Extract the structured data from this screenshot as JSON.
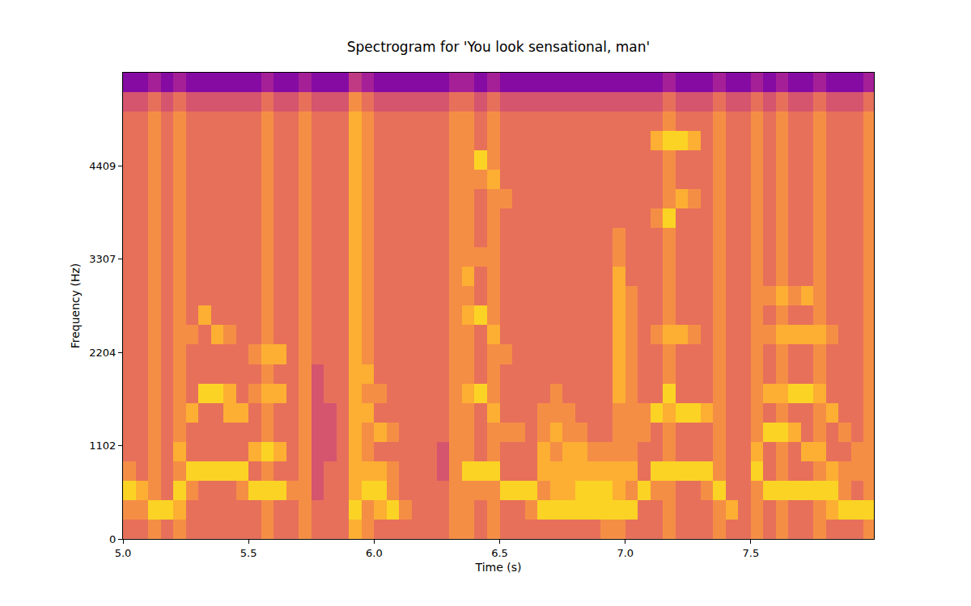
{
  "chart_data": {
    "type": "heatmap",
    "title": "Spectrogram for 'You look sensational, man'",
    "x_label": "Time (s)",
    "y_label": "Frequency (Hz)",
    "color": "plasma",
    "grid": false,
    "xlim": [
      5.0,
      7.99
    ],
    "ylim": [
      0,
      5512
    ],
    "xticks": [
      {
        "value": 5.0,
        "label": "5.0"
      },
      {
        "value": 5.5,
        "label": "5.5"
      },
      {
        "value": 6.0,
        "label": "6.0"
      },
      {
        "value": 6.5,
        "label": "6.5"
      },
      {
        "value": 7.0,
        "label": "7.0"
      },
      {
        "value": 7.5,
        "label": "7.5"
      }
    ],
    "yticks": [
      0,
      1102,
      2204,
      3307,
      4409
    ],
    "color_range": [
      -1,
      10
    ],
    "x": [
      5.025,
      5.075,
      5.125,
      5.175,
      5.225,
      5.275,
      5.325,
      5.375,
      5.425,
      5.475,
      5.525,
      5.575,
      5.625,
      5.675,
      5.725,
      5.775,
      5.825,
      5.875,
      5.925,
      5.975,
      6.025,
      6.075,
      6.125,
      6.175,
      6.225,
      6.275,
      6.325,
      6.375,
      6.425,
      6.475,
      6.525,
      6.575,
      6.625,
      6.675,
      6.725,
      6.775,
      6.825,
      6.875,
      6.925,
      6.975,
      7.025,
      7.075,
      7.125,
      7.175,
      7.225,
      7.275,
      7.325,
      7.375,
      7.425,
      7.475,
      7.525,
      7.575,
      7.625,
      7.675,
      7.725,
      7.775,
      7.825,
      7.875,
      7.925,
      7.975
    ],
    "y": [
      115,
      345,
      574,
      804,
      1034,
      1263,
      1493,
      1723,
      1952,
      2182,
      2412,
      2641,
      2871,
      3101,
      3330,
      3560,
      3790,
      4020,
      4249,
      4479,
      4709,
      4938,
      5168,
      5398
    ],
    "cells": [
      [
        6,
        7,
        9,
        7,
        6,
        6,
        6,
        6,
        6,
        6,
        6,
        6,
        6,
        6,
        6,
        6,
        6,
        6,
        6,
        6,
        6,
        6,
        5,
        2
      ],
      [
        6,
        7,
        8,
        6,
        6,
        6,
        6,
        6,
        6,
        6,
        6,
        6,
        6,
        6,
        6,
        6,
        6,
        6,
        6,
        6,
        6,
        6,
        5,
        2
      ],
      [
        7,
        9,
        7,
        7,
        7,
        7,
        7,
        7,
        7,
        7,
        7,
        7,
        7,
        7,
        7,
        7,
        7,
        7,
        7,
        7,
        7,
        7,
        6,
        3
      ],
      [
        6,
        9,
        6,
        6,
        6,
        6,
        6,
        6,
        6,
        6,
        6,
        6,
        6,
        6,
        6,
        6,
        6,
        6,
        6,
        6,
        6,
        6,
        5,
        2
      ],
      [
        7,
        8,
        9,
        7,
        8,
        7,
        7,
        7,
        7,
        7,
        7,
        7,
        7,
        7,
        7,
        7,
        7,
        7,
        7,
        7,
        7,
        7,
        6,
        3
      ],
      [
        6,
        6,
        7,
        9,
        6,
        6,
        8,
        6,
        6,
        6,
        7,
        6,
        6,
        6,
        6,
        6,
        6,
        6,
        6,
        6,
        6,
        6,
        5,
        2
      ],
      [
        6,
        6,
        6,
        9,
        6,
        6,
        6,
        9,
        6,
        6,
        6,
        8,
        6,
        6,
        6,
        6,
        6,
        6,
        6,
        6,
        6,
        6,
        5,
        2
      ],
      [
        6,
        6,
        6,
        9,
        6,
        6,
        6,
        9,
        6,
        6,
        8,
        6,
        6,
        6,
        6,
        6,
        6,
        6,
        6,
        6,
        6,
        6,
        5,
        2
      ],
      [
        6,
        6,
        6,
        9,
        6,
        6,
        8,
        8,
        6,
        6,
        7,
        6,
        6,
        6,
        6,
        6,
        6,
        6,
        6,
        6,
        6,
        6,
        5,
        2
      ],
      [
        6,
        6,
        7,
        9,
        6,
        6,
        8,
        6,
        6,
        6,
        6,
        6,
        6,
        6,
        6,
        6,
        6,
        6,
        6,
        6,
        6,
        6,
        5,
        2
      ],
      [
        6,
        6,
        9,
        6,
        8,
        6,
        6,
        7,
        6,
        7,
        6,
        6,
        6,
        6,
        6,
        6,
        6,
        6,
        6,
        6,
        6,
        6,
        5,
        2
      ],
      [
        7,
        7,
        9,
        7,
        9,
        7,
        7,
        8,
        7,
        8,
        7,
        7,
        7,
        7,
        7,
        7,
        7,
        7,
        7,
        7,
        7,
        7,
        6,
        3
      ],
      [
        6,
        6,
        9,
        6,
        8,
        6,
        6,
        8,
        6,
        8,
        6,
        6,
        6,
        6,
        6,
        6,
        6,
        6,
        6,
        6,
        6,
        6,
        5,
        2
      ],
      [
        6,
        6,
        7,
        6,
        6,
        6,
        6,
        6,
        6,
        6,
        6,
        6,
        6,
        6,
        6,
        6,
        6,
        6,
        6,
        6,
        6,
        6,
        5,
        2
      ],
      [
        7,
        7,
        7,
        7,
        7,
        7,
        7,
        7,
        7,
        7,
        7,
        7,
        7,
        7,
        7,
        7,
        7,
        7,
        7,
        7,
        7,
        7,
        6,
        3
      ],
      [
        6,
        6,
        5,
        5,
        5,
        5,
        5,
        5,
        5,
        6,
        6,
        6,
        6,
        6,
        6,
        6,
        6,
        6,
        6,
        6,
        6,
        6,
        5,
        2
      ],
      [
        6,
        6,
        6,
        6,
        5,
        5,
        5,
        6,
        6,
        6,
        6,
        6,
        6,
        6,
        6,
        6,
        6,
        6,
        6,
        6,
        6,
        6,
        5,
        2
      ],
      [
        6,
        6,
        6,
        6,
        6,
        6,
        6,
        6,
        6,
        6,
        6,
        6,
        6,
        6,
        6,
        6,
        6,
        6,
        6,
        6,
        6,
        6,
        5,
        2
      ],
      [
        8,
        9,
        8,
        8,
        8,
        8,
        8,
        8,
        8,
        8,
        8,
        8,
        8,
        8,
        8,
        8,
        8,
        8,
        8,
        8,
        8,
        8,
        7,
        4
      ],
      [
        7,
        7,
        9,
        8,
        7,
        7,
        8,
        7,
        8,
        7,
        7,
        7,
        7,
        7,
        7,
        7,
        7,
        7,
        7,
        7,
        7,
        7,
        6,
        3
      ],
      [
        6,
        8,
        9,
        8,
        6,
        8,
        6,
        7,
        6,
        6,
        6,
        6,
        6,
        6,
        6,
        6,
        6,
        6,
        6,
        6,
        6,
        6,
        5,
        2
      ],
      [
        6,
        9,
        7,
        7,
        6,
        7,
        6,
        6,
        6,
        6,
        6,
        6,
        6,
        6,
        6,
        6,
        6,
        6,
        6,
        6,
        6,
        6,
        5,
        2
      ],
      [
        6,
        7,
        6,
        6,
        6,
        6,
        6,
        6,
        6,
        6,
        6,
        6,
        6,
        6,
        6,
        6,
        6,
        6,
        6,
        6,
        6,
        6,
        5,
        2
      ],
      [
        6,
        6,
        6,
        6,
        6,
        6,
        6,
        6,
        6,
        6,
        6,
        6,
        6,
        6,
        6,
        6,
        6,
        6,
        6,
        6,
        6,
        6,
        5,
        2
      ],
      [
        6,
        6,
        6,
        6,
        6,
        6,
        6,
        6,
        6,
        6,
        6,
        6,
        6,
        6,
        6,
        6,
        6,
        6,
        6,
        6,
        6,
        6,
        5,
        2
      ],
      [
        6,
        6,
        6,
        5,
        5,
        6,
        6,
        6,
        6,
        6,
        6,
        6,
        6,
        6,
        6,
        6,
        6,
        6,
        6,
        6,
        6,
        6,
        5,
        2
      ],
      [
        7,
        7,
        7,
        7,
        7,
        7,
        7,
        7,
        7,
        7,
        7,
        7,
        7,
        7,
        7,
        7,
        7,
        7,
        7,
        7,
        7,
        7,
        6,
        3
      ],
      [
        7,
        7,
        7,
        9,
        7,
        7,
        7,
        8,
        7,
        7,
        7,
        8,
        7,
        8,
        7,
        7,
        7,
        7,
        7,
        7,
        7,
        7,
        6,
        3
      ],
      [
        6,
        6,
        7,
        9,
        6,
        6,
        6,
        9,
        6,
        6,
        6,
        9,
        6,
        6,
        7,
        6,
        6,
        6,
        7,
        9,
        6,
        6,
        5,
        2
      ],
      [
        7,
        7,
        7,
        9,
        7,
        7,
        8,
        7,
        7,
        7,
        8,
        7,
        7,
        7,
        7,
        7,
        7,
        7,
        8,
        7,
        7,
        7,
        6,
        3
      ],
      [
        6,
        6,
        9,
        6,
        6,
        7,
        6,
        6,
        6,
        7,
        6,
        6,
        6,
        6,
        6,
        6,
        6,
        7,
        6,
        6,
        6,
        6,
        5,
        2
      ],
      [
        6,
        6,
        9,
        6,
        6,
        7,
        6,
        6,
        6,
        6,
        6,
        6,
        6,
        6,
        6,
        6,
        6,
        6,
        6,
        6,
        6,
        6,
        5,
        2
      ],
      [
        6,
        7,
        9,
        6,
        6,
        6,
        6,
        6,
        6,
        6,
        6,
        6,
        6,
        6,
        6,
        6,
        6,
        6,
        6,
        6,
        6,
        6,
        5,
        2
      ],
      [
        6,
        9,
        7,
        8,
        8,
        7,
        7,
        6,
        6,
        6,
        6,
        6,
        6,
        6,
        6,
        6,
        6,
        6,
        6,
        6,
        6,
        6,
        5,
        2
      ],
      [
        6,
        9,
        8,
        8,
        7,
        8,
        7,
        7,
        6,
        6,
        6,
        6,
        6,
        6,
        6,
        6,
        6,
        6,
        6,
        6,
        6,
        6,
        5,
        2
      ],
      [
        6,
        9,
        8,
        8,
        8,
        7,
        7,
        6,
        6,
        6,
        6,
        6,
        6,
        6,
        6,
        6,
        6,
        6,
        6,
        6,
        6,
        6,
        5,
        2
      ],
      [
        6,
        9,
        9,
        8,
        8,
        7,
        6,
        6,
        6,
        6,
        6,
        6,
        6,
        6,
        6,
        6,
        6,
        6,
        6,
        6,
        6,
        6,
        5,
        2
      ],
      [
        6,
        9,
        9,
        8,
        7,
        6,
        6,
        6,
        6,
        6,
        6,
        6,
        6,
        6,
        6,
        6,
        6,
        6,
        6,
        6,
        6,
        6,
        5,
        2
      ],
      [
        7,
        9,
        9,
        8,
        7,
        6,
        6,
        6,
        6,
        6,
        6,
        6,
        6,
        6,
        6,
        6,
        6,
        6,
        6,
        6,
        6,
        6,
        5,
        2
      ],
      [
        7,
        9,
        8,
        8,
        7,
        7,
        7,
        8,
        8,
        8,
        8,
        8,
        8,
        8,
        7,
        7,
        6,
        6,
        6,
        6,
        6,
        6,
        5,
        2
      ],
      [
        6,
        9,
        7,
        8,
        7,
        7,
        7,
        7,
        7,
        7,
        7,
        7,
        7,
        6,
        6,
        6,
        6,
        6,
        6,
        6,
        6,
        6,
        5,
        2
      ],
      [
        6,
        6,
        9,
        6,
        6,
        7,
        7,
        6,
        6,
        6,
        6,
        6,
        6,
        6,
        6,
        6,
        6,
        6,
        6,
        6,
        6,
        6,
        5,
        2
      ],
      [
        6,
        6,
        7,
        9,
        6,
        6,
        9,
        6,
        6,
        6,
        7,
        6,
        6,
        6,
        6,
        6,
        7,
        6,
        6,
        6,
        8,
        6,
        5,
        2
      ],
      [
        7,
        7,
        7,
        9,
        7,
        7,
        8,
        9,
        7,
        7,
        8,
        7,
        7,
        7,
        7,
        7,
        9,
        7,
        7,
        7,
        9,
        7,
        6,
        3
      ],
      [
        6,
        6,
        6,
        9,
        6,
        6,
        9,
        6,
        6,
        6,
        8,
        6,
        6,
        6,
        6,
        6,
        6,
        8,
        6,
        6,
        9,
        6,
        5,
        2
      ],
      [
        6,
        6,
        6,
        9,
        6,
        6,
        9,
        6,
        6,
        6,
        7,
        6,
        6,
        6,
        6,
        6,
        6,
        7,
        6,
        6,
        8,
        6,
        5,
        2
      ],
      [
        6,
        6,
        7,
        9,
        6,
        6,
        8,
        6,
        6,
        6,
        6,
        6,
        6,
        6,
        6,
        6,
        6,
        6,
        6,
        6,
        6,
        6,
        5,
        2
      ],
      [
        7,
        7,
        9,
        7,
        7,
        7,
        7,
        7,
        7,
        7,
        7,
        7,
        7,
        7,
        7,
        7,
        7,
        7,
        7,
        7,
        7,
        7,
        6,
        3
      ],
      [
        6,
        8,
        6,
        6,
        6,
        6,
        6,
        6,
        6,
        6,
        6,
        6,
        6,
        6,
        6,
        6,
        6,
        6,
        6,
        6,
        6,
        6,
        5,
        2
      ],
      [
        6,
        6,
        6,
        6,
        6,
        6,
        6,
        6,
        6,
        6,
        6,
        6,
        6,
        6,
        6,
        6,
        6,
        6,
        6,
        6,
        6,
        6,
        5,
        2
      ],
      [
        7,
        7,
        7,
        9,
        8,
        7,
        7,
        7,
        7,
        7,
        7,
        7,
        7,
        7,
        7,
        7,
        7,
        7,
        7,
        7,
        7,
        7,
        6,
        3
      ],
      [
        6,
        6,
        9,
        6,
        6,
        9,
        6,
        8,
        6,
        6,
        7,
        6,
        7,
        6,
        6,
        6,
        6,
        6,
        6,
        6,
        6,
        6,
        5,
        2
      ],
      [
        7,
        7,
        9,
        7,
        7,
        9,
        7,
        8,
        7,
        7,
        8,
        7,
        8,
        7,
        7,
        7,
        7,
        7,
        7,
        7,
        7,
        7,
        6,
        3
      ],
      [
        6,
        6,
        9,
        6,
        6,
        8,
        6,
        9,
        6,
        6,
        8,
        6,
        7,
        6,
        6,
        6,
        6,
        6,
        6,
        6,
        6,
        6,
        5,
        2
      ],
      [
        6,
        6,
        9,
        6,
        8,
        6,
        6,
        9,
        6,
        6,
        8,
        6,
        8,
        6,
        6,
        6,
        6,
        6,
        6,
        6,
        6,
        6,
        5,
        2
      ],
      [
        7,
        7,
        9,
        7,
        8,
        7,
        7,
        8,
        7,
        7,
        8,
        7,
        7,
        7,
        7,
        7,
        7,
        7,
        7,
        7,
        7,
        7,
        6,
        3
      ],
      [
        6,
        8,
        9,
        8,
        6,
        6,
        8,
        6,
        6,
        6,
        7,
        6,
        6,
        6,
        6,
        6,
        6,
        6,
        6,
        6,
        6,
        6,
        5,
        2
      ],
      [
        6,
        9,
        7,
        7,
        6,
        7,
        6,
        6,
        6,
        6,
        6,
        6,
        6,
        6,
        6,
        6,
        6,
        6,
        6,
        6,
        6,
        6,
        5,
        2
      ],
      [
        6,
        9,
        6,
        7,
        7,
        6,
        6,
        6,
        6,
        6,
        6,
        6,
        6,
        6,
        6,
        6,
        6,
        6,
        6,
        6,
        6,
        6,
        5,
        2
      ],
      [
        7,
        9,
        7,
        7,
        7,
        7,
        7,
        7,
        7,
        7,
        7,
        7,
        7,
        7,
        7,
        7,
        7,
        7,
        7,
        7,
        7,
        7,
        6,
        3
      ]
    ]
  }
}
